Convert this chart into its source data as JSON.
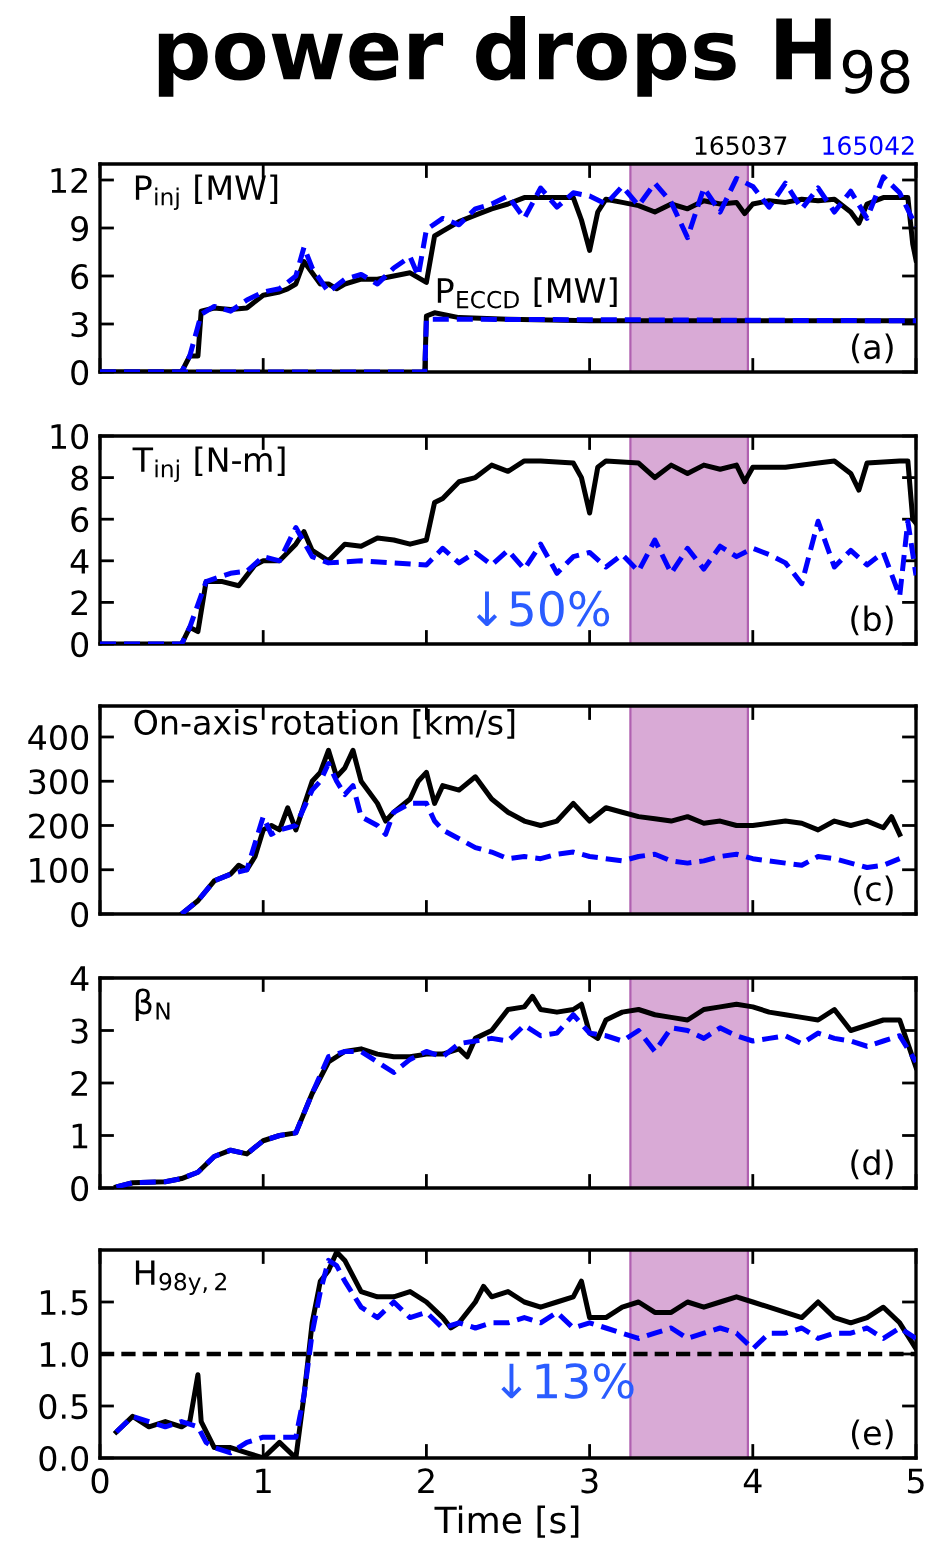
{
  "chart_data": [
    {
      "type": "line",
      "title": "power drops H$_{98}$",
      "xlim": [
        0,
        5
      ],
      "xticks": [
        0,
        1,
        2,
        3,
        4,
        5
      ],
      "ylim": [
        0,
        13
      ],
      "yticks": [
        0,
        3,
        6,
        9,
        12
      ],
      "tick_labels": "y",
      "grid": false,
      "annotations": [
        "P$_{inj}$ [MW]",
        "(a)",
        "P$_{ECCD}$ [MW]"
      ],
      "bands": [
        {
          "axis": "x",
          "from": 3.25,
          "to": 3.97,
          "color": "#d9aad6"
        }
      ],
      "series": [
        {
          "name": "165037",
          "color": "#000000",
          "line_style": "solid",
          "x": [
            0,
            0.5,
            0.55,
            0.6,
            0.62,
            0.7,
            0.8,
            0.9,
            1.0,
            1.1,
            1.15,
            1.2,
            1.25,
            1.3,
            1.35,
            1.4,
            1.45,
            1.5,
            1.6,
            1.7,
            1.8,
            1.9,
            2.0,
            2.05,
            2.1,
            2.2,
            2.3,
            2.4,
            2.5,
            2.6,
            2.7,
            2.8,
            2.9,
            2.95,
            3.0,
            3.05,
            3.1,
            3.2,
            3.3,
            3.4,
            3.5,
            3.6,
            3.7,
            3.8,
            3.9,
            3.95,
            4.0,
            4.1,
            4.2,
            4.3,
            4.4,
            4.5,
            4.6,
            4.65,
            4.7,
            4.8,
            4.9,
            4.95,
            4.98,
            5.0
          ],
          "values": [
            0,
            0,
            1,
            1,
            3.8,
            4,
            3.9,
            4,
            4.8,
            5,
            5.2,
            5.5,
            6.9,
            6.2,
            5.5,
            5.5,
            5.2,
            5.5,
            5.8,
            5.8,
            6,
            6.2,
            5.6,
            8.5,
            8.8,
            9.4,
            9.8,
            10.2,
            10.5,
            10.9,
            10.9,
            10.9,
            10.9,
            9.5,
            7.6,
            10,
            10.8,
            10.6,
            10.4,
            10,
            10.5,
            10.2,
            10.7,
            10.5,
            10.6,
            9.9,
            10.5,
            10.7,
            10.6,
            10.8,
            10.7,
            10.8,
            10,
            9.3,
            10.5,
            10.9,
            10.9,
            10.9,
            8,
            7
          ]
        },
        {
          "name": "165042",
          "color": "#0000ff",
          "line_style": "dashed",
          "x": [
            0,
            0.5,
            0.55,
            0.62,
            0.7,
            0.8,
            0.9,
            1.0,
            1.1,
            1.2,
            1.25,
            1.3,
            1.4,
            1.5,
            1.6,
            1.7,
            1.8,
            1.9,
            1.95,
            2.0,
            2.1,
            2.2,
            2.3,
            2.4,
            2.5,
            2.6,
            2.7,
            2.8,
            2.9,
            3.0,
            3.1,
            3.2,
            3.3,
            3.4,
            3.5,
            3.6,
            3.7,
            3.8,
            3.9,
            4.0,
            4.1,
            4.2,
            4.3,
            4.4,
            4.5,
            4.6,
            4.7,
            4.8,
            4.9,
            5.0
          ],
          "values": [
            0,
            0,
            1,
            3.6,
            4.1,
            3.8,
            4.5,
            5,
            5.2,
            6,
            7.8,
            6.5,
            5,
            5.8,
            6.1,
            5.5,
            6.5,
            7.2,
            6,
            8.9,
            9.6,
            9.2,
            10.2,
            10.5,
            11,
            9.6,
            11.5,
            10.3,
            11.2,
            11,
            10.5,
            11.6,
            10.4,
            11.8,
            10.6,
            8.4,
            11.5,
            10,
            12.1,
            11.6,
            10.3,
            11.8,
            10.2,
            11.5,
            10,
            11.3,
            9.6,
            12.2,
            11.2,
            9.1
          ]
        },
        {
          "color": "#000000",
          "line_style": "solid",
          "x": [
            0,
            1.99,
            2.0,
            2.05,
            2.2,
            2.5,
            3.0,
            4.0,
            5.0
          ],
          "values": [
            0,
            0,
            3.5,
            3.7,
            3.4,
            3.3,
            3.2,
            3.2,
            3.2
          ]
        },
        {
          "color": "#0000ff",
          "line_style": "dashed",
          "x": [
            0,
            1.99,
            2.0,
            2.1,
            5.0
          ],
          "values": [
            0,
            0,
            3.3,
            3.3,
            3.2
          ]
        }
      ]
    },
    {
      "type": "line",
      "xlim": [
        0,
        5
      ],
      "xticks": [
        0,
        1,
        2,
        3,
        4,
        5
      ],
      "ylim": [
        0,
        10
      ],
      "yticks": [
        0,
        2,
        4,
        6,
        8,
        10
      ],
      "tick_labels": "y",
      "grid": false,
      "annotations": [
        "T$_{inj}$ [N-m]",
        "(b)",
        "↓50%"
      ],
      "bands": [
        {
          "axis": "x",
          "from": 3.25,
          "to": 3.97,
          "color": "#d9aad6"
        }
      ],
      "series": [
        {
          "color": "#000000",
          "line_style": "solid",
          "x": [
            0,
            0.5,
            0.55,
            0.6,
            0.65,
            0.75,
            0.85,
            0.9,
            0.95,
            1.0,
            1.1,
            1.2,
            1.25,
            1.3,
            1.4,
            1.5,
            1.6,
            1.7,
            1.8,
            1.9,
            2.0,
            2.05,
            2.1,
            2.2,
            2.3,
            2.4,
            2.5,
            2.6,
            2.7,
            2.9,
            2.95,
            3.0,
            3.05,
            3.1,
            3.3,
            3.4,
            3.5,
            3.6,
            3.7,
            3.8,
            3.9,
            3.95,
            4.0,
            4.2,
            4.4,
            4.5,
            4.6,
            4.65,
            4.7,
            4.9,
            4.95,
            4.98,
            5.0
          ],
          "values": [
            0,
            0,
            0.8,
            0.6,
            3,
            3,
            2.8,
            3.3,
            3.8,
            4,
            4,
            4.8,
            5.4,
            4.5,
            4,
            4.8,
            4.7,
            5.1,
            5,
            4.8,
            5,
            6.8,
            7,
            7.8,
            8,
            8.6,
            8.3,
            8.8,
            8.8,
            8.7,
            8,
            6.3,
            8.5,
            8.8,
            8.7,
            8,
            8.6,
            8.2,
            8.6,
            8.4,
            8.6,
            7.8,
            8.5,
            8.5,
            8.7,
            8.8,
            8.2,
            7.4,
            8.7,
            8.8,
            8.8,
            6,
            5.8
          ]
        },
        {
          "color": "#0000ff",
          "line_style": "dashed",
          "x": [
            0,
            0.5,
            0.55,
            0.65,
            0.8,
            0.9,
            1.0,
            1.1,
            1.2,
            1.3,
            1.4,
            1.6,
            1.8,
            2.0,
            2.1,
            2.2,
            2.3,
            2.4,
            2.5,
            2.6,
            2.7,
            2.8,
            2.9,
            3.0,
            3.1,
            3.2,
            3.3,
            3.4,
            3.5,
            3.6,
            3.7,
            3.8,
            3.9,
            4.0,
            4.1,
            4.2,
            4.3,
            4.4,
            4.5,
            4.6,
            4.7,
            4.8,
            4.9,
            4.95,
            5.0
          ],
          "values": [
            0,
            0,
            0.8,
            3,
            3.4,
            3.5,
            4.2,
            4,
            5.6,
            4.2,
            3.9,
            4,
            3.9,
            3.8,
            4.6,
            3.9,
            4.4,
            3.8,
            4.5,
            3.6,
            4.8,
            3.4,
            4.2,
            4.4,
            3.7,
            4.3,
            3.5,
            5,
            3.4,
            4.6,
            3.6,
            4.7,
            4.2,
            4.6,
            4.3,
            3.9,
            2.9,
            5.9,
            3.7,
            4.5,
            3.8,
            4.4,
            2.3,
            5.9,
            3.3
          ]
        }
      ]
    },
    {
      "type": "line",
      "xlim": [
        0,
        5
      ],
      "xticks": [
        0,
        1,
        2,
        3,
        4,
        5
      ],
      "ylim": [
        0,
        470
      ],
      "yticks": [
        0,
        100,
        200,
        300,
        400
      ],
      "tick_labels": "y",
      "grid": false,
      "annotations": [
        "On-axis rotation [km/s]",
        "(c)"
      ],
      "bands": [
        {
          "axis": "x",
          "from": 3.25,
          "to": 3.97,
          "color": "#d9aad6"
        }
      ],
      "series": [
        {
          "color": "#000000",
          "line_style": "solid",
          "x": [
            0.5,
            0.6,
            0.7,
            0.8,
            0.85,
            0.9,
            0.95,
            1.0,
            1.05,
            1.1,
            1.15,
            1.2,
            1.3,
            1.35,
            1.4,
            1.45,
            1.5,
            1.55,
            1.6,
            1.7,
            1.75,
            1.8,
            1.9,
            1.95,
            2.0,
            2.05,
            2.1,
            2.2,
            2.3,
            2.4,
            2.5,
            2.6,
            2.7,
            2.8,
            2.9,
            2.95,
            3.0,
            3.1,
            3.2,
            3.3,
            3.4,
            3.5,
            3.6,
            3.7,
            3.8,
            3.9,
            4.0,
            4.1,
            4.2,
            4.3,
            4.4,
            4.5,
            4.6,
            4.7,
            4.8,
            4.85,
            4.9
          ],
          "values": [
            0,
            30,
            75,
            90,
            110,
            100,
            130,
            190,
            200,
            190,
            240,
            190,
            300,
            320,
            370,
            310,
            330,
            370,
            300,
            250,
            210,
            230,
            260,
            300,
            320,
            250,
            290,
            280,
            310,
            260,
            230,
            210,
            200,
            210,
            250,
            230,
            210,
            240,
            230,
            220,
            215,
            210,
            220,
            205,
            210,
            200,
            200,
            205,
            210,
            205,
            190,
            210,
            200,
            210,
            195,
            220,
            180
          ]
        },
        {
          "color": "#0000ff",
          "line_style": "dashed",
          "x": [
            0.5,
            0.6,
            0.7,
            0.8,
            0.9,
            0.95,
            1.0,
            1.05,
            1.1,
            1.2,
            1.3,
            1.35,
            1.4,
            1.45,
            1.5,
            1.55,
            1.6,
            1.7,
            1.75,
            1.8,
            1.9,
            2.0,
            2.05,
            2.1,
            2.2,
            2.3,
            2.4,
            2.5,
            2.6,
            2.7,
            2.8,
            2.9,
            3.0,
            3.1,
            3.2,
            3.3,
            3.4,
            3.5,
            3.6,
            3.7,
            3.8,
            3.9,
            4.0,
            4.1,
            4.2,
            4.3,
            4.4,
            4.5,
            4.6,
            4.7,
            4.8,
            4.9
          ],
          "values": [
            0,
            30,
            75,
            90,
            100,
            160,
            220,
            180,
            190,
            200,
            280,
            300,
            340,
            300,
            270,
            290,
            220,
            200,
            180,
            230,
            250,
            250,
            210,
            190,
            170,
            150,
            140,
            125,
            130,
            125,
            135,
            140,
            130,
            125,
            120,
            130,
            135,
            120,
            115,
            120,
            130,
            135,
            125,
            120,
            115,
            110,
            130,
            125,
            115,
            105,
            110,
            125
          ]
        }
      ]
    },
    {
      "type": "line",
      "xlim": [
        0,
        5
      ],
      "xticks": [
        0,
        1,
        2,
        3,
        4,
        5
      ],
      "ylim": [
        0,
        4
      ],
      "yticks": [
        0,
        1,
        2,
        3,
        4
      ],
      "tick_labels": "y",
      "grid": false,
      "annotations": [
        "β$_{N}$",
        "(d)"
      ],
      "bands": [
        {
          "axis": "x",
          "from": 3.25,
          "to": 3.97,
          "color": "#d9aad6"
        }
      ],
      "series": [
        {
          "color": "#000000",
          "line_style": "solid",
          "x": [
            0.1,
            0.2,
            0.4,
            0.5,
            0.6,
            0.7,
            0.8,
            0.9,
            1.0,
            1.1,
            1.2,
            1.3,
            1.4,
            1.5,
            1.6,
            1.7,
            1.8,
            1.9,
            2.0,
            2.1,
            2.2,
            2.25,
            2.3,
            2.4,
            2.5,
            2.6,
            2.65,
            2.7,
            2.8,
            2.9,
            2.95,
            3.0,
            3.05,
            3.1,
            3.2,
            3.3,
            3.4,
            3.5,
            3.6,
            3.7,
            3.8,
            3.9,
            4.0,
            4.1,
            4.2,
            4.3,
            4.4,
            4.5,
            4.6,
            4.7,
            4.8,
            4.9,
            5.0
          ],
          "values": [
            0.02,
            0.1,
            0.12,
            0.18,
            0.3,
            0.6,
            0.72,
            0.65,
            0.9,
            1,
            1.05,
            1.8,
            2.4,
            2.6,
            2.65,
            2.55,
            2.5,
            2.5,
            2.55,
            2.55,
            2.65,
            2.5,
            2.85,
            3,
            3.4,
            3.45,
            3.65,
            3.4,
            3.35,
            3.4,
            3.5,
            2.95,
            2.85,
            3.2,
            3.35,
            3.4,
            3.3,
            3.25,
            3.2,
            3.4,
            3.45,
            3.5,
            3.45,
            3.35,
            3.3,
            3.25,
            3.2,
            3.4,
            3,
            3.1,
            3.2,
            3.2,
            2.3
          ]
        },
        {
          "color": "#0000ff",
          "line_style": "dashed",
          "x": [
            0.1,
            0.2,
            0.4,
            0.5,
            0.6,
            0.7,
            0.8,
            0.9,
            1.0,
            1.1,
            1.2,
            1.3,
            1.4,
            1.5,
            1.6,
            1.7,
            1.8,
            1.9,
            2.0,
            2.1,
            2.2,
            2.3,
            2.4,
            2.5,
            2.6,
            2.7,
            2.8,
            2.9,
            3.0,
            3.1,
            3.2,
            3.3,
            3.4,
            3.5,
            3.6,
            3.7,
            3.8,
            3.9,
            4.0,
            4.1,
            4.2,
            4.3,
            4.4,
            4.5,
            4.6,
            4.7,
            4.8,
            4.9,
            5.0
          ],
          "values": [
            0.02,
            0.1,
            0.12,
            0.18,
            0.3,
            0.6,
            0.72,
            0.65,
            0.9,
            1,
            1.05,
            1.8,
            2.5,
            2.6,
            2.6,
            2.4,
            2.2,
            2.45,
            2.6,
            2.5,
            2.75,
            2.8,
            2.85,
            2.8,
            3.1,
            2.9,
            2.95,
            3.3,
            2.95,
            2.9,
            2.8,
            3,
            2.6,
            3.05,
            3,
            2.85,
            3.05,
            2.9,
            2.8,
            2.85,
            2.9,
            2.75,
            2.95,
            2.85,
            2.8,
            2.7,
            2.8,
            2.9,
            2.4
          ]
        }
      ]
    },
    {
      "type": "line",
      "xlabel": "Time [s]",
      "xlim": [
        0,
        5
      ],
      "xticks": [
        0,
        1,
        2,
        3,
        4,
        5
      ],
      "ylim": [
        0,
        2.0
      ],
      "yticks": [
        {
          "value": 0,
          "label": "0.0"
        },
        {
          "value": 0.5,
          "label": "0.5"
        },
        {
          "value": 1.0,
          "label": "1.0"
        },
        {
          "value": 1.5,
          "label": "1.5"
        }
      ],
      "grid": false,
      "annotations": [
        "H$_{98y,2}$",
        "(e)",
        "↓13%"
      ],
      "bands": [
        {
          "axis": "x",
          "from": 3.25,
          "to": 3.97,
          "color": "#d9aad6"
        }
      ],
      "ref_lines": [
        {
          "axis": "y",
          "value": 1.0,
          "color": "#000000",
          "line_style": "dashed"
        }
      ],
      "series": [
        {
          "color": "#000000",
          "line_style": "solid",
          "x": [
            0.1,
            0.2,
            0.3,
            0.4,
            0.5,
            0.55,
            0.6,
            0.62,
            0.7,
            0.8,
            0.9,
            1.0,
            1.1,
            1.2,
            1.25,
            1.3,
            1.35,
            1.4,
            1.45,
            1.5,
            1.6,
            1.7,
            1.8,
            1.9,
            2.0,
            2.1,
            2.15,
            2.2,
            2.3,
            2.35,
            2.4,
            2.5,
            2.6,
            2.7,
            2.8,
            2.9,
            2.95,
            3.0,
            3.1,
            3.2,
            3.3,
            3.4,
            3.5,
            3.6,
            3.7,
            3.8,
            3.9,
            4.0,
            4.1,
            4.2,
            4.3,
            4.4,
            4.5,
            4.6,
            4.7,
            4.8,
            4.9,
            5.0
          ],
          "values": [
            0.25,
            0.4,
            0.3,
            0.35,
            0.3,
            0.35,
            0.8,
            0.35,
            0.1,
            0.1,
            0.05,
            0,
            0.15,
            0,
            0.6,
            1.3,
            1.7,
            1.8,
            1.98,
            1.9,
            1.6,
            1.55,
            1.55,
            1.6,
            1.5,
            1.35,
            1.25,
            1.3,
            1.5,
            1.65,
            1.55,
            1.6,
            1.5,
            1.45,
            1.5,
            1.55,
            1.7,
            1.35,
            1.35,
            1.45,
            1.5,
            1.4,
            1.4,
            1.5,
            1.45,
            1.5,
            1.55,
            1.5,
            1.45,
            1.4,
            1.35,
            1.5,
            1.35,
            1.3,
            1.35,
            1.45,
            1.3,
            1.05
          ]
        },
        {
          "color": "#0000ff",
          "line_style": "dashed",
          "x": [
            0.1,
            0.2,
            0.3,
            0.4,
            0.5,
            0.6,
            0.65,
            0.7,
            0.8,
            0.9,
            1.0,
            1.1,
            1.2,
            1.25,
            1.3,
            1.35,
            1.4,
            1.45,
            1.5,
            1.6,
            1.7,
            1.8,
            1.9,
            2.0,
            2.1,
            2.2,
            2.3,
            2.4,
            2.5,
            2.6,
            2.7,
            2.8,
            2.9,
            3.0,
            3.1,
            3.2,
            3.3,
            3.4,
            3.5,
            3.6,
            3.7,
            3.8,
            3.9,
            4.0,
            4.1,
            4.2,
            4.3,
            4.4,
            4.5,
            4.6,
            4.7,
            4.8,
            4.9,
            5.0
          ],
          "values": [
            0.25,
            0.4,
            0.35,
            0.3,
            0.35,
            0.3,
            0.15,
            0.1,
            0.05,
            0.15,
            0.2,
            0.2,
            0.2,
            0.6,
            1.2,
            1.6,
            1.9,
            1.85,
            1.7,
            1.45,
            1.35,
            1.5,
            1.35,
            1.4,
            1.25,
            1.3,
            1.25,
            1.3,
            1.3,
            1.35,
            1.3,
            1.4,
            1.25,
            1.3,
            1.25,
            1.2,
            1.15,
            1.2,
            1.25,
            1.15,
            1.2,
            1.25,
            1.2,
            1.05,
            1.2,
            1.2,
            1.25,
            1.15,
            1.2,
            1.2,
            1.25,
            1.15,
            1.25,
            1.15
          ]
        }
      ]
    }
  ]
}
